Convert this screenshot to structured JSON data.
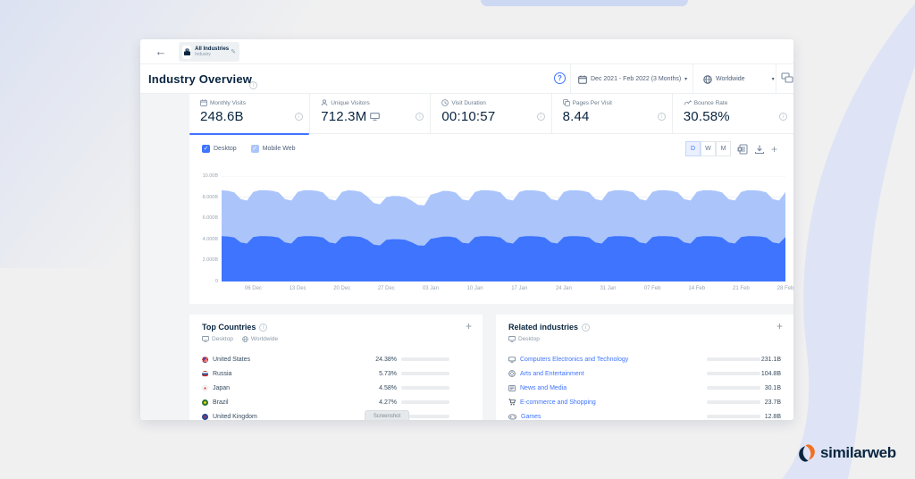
{
  "colors": {
    "accent_blue": "#3e74fe",
    "light_blue": "#abc5fb",
    "navy": "#092540",
    "card_bg": "#ffffff",
    "app_bg": "#f2f4f6",
    "brand_orange": "#f36f21"
  },
  "topbar": {
    "back_arrow": "←",
    "entity_name": "All Industries",
    "entity_type": "Industry",
    "edit_icon": "pencil"
  },
  "header": {
    "title": "Industry Overview",
    "help_label": "?",
    "date_range": "Dec 2021 - Feb 2022 (3 Months)",
    "region": "Worldwide"
  },
  "metrics": [
    {
      "label": "Monthly Visits",
      "value": "248.6B",
      "icon": "calendar",
      "selected": true,
      "device_icon": ""
    },
    {
      "label": "Unique Visitors",
      "value": "712.3M",
      "icon": "users",
      "selected": false,
      "device_icon": "desktop"
    },
    {
      "label": "Visit Duration",
      "value": "00:10:57",
      "icon": "clock",
      "selected": false,
      "device_icon": ""
    },
    {
      "label": "Pages Per Visit",
      "value": "8.44",
      "icon": "pages",
      "selected": false,
      "device_icon": ""
    },
    {
      "label": "Bounce Rate",
      "value": "30.58%",
      "icon": "bounce",
      "selected": false,
      "device_icon": ""
    }
  ],
  "chart_controls": {
    "granularity": [
      "D",
      "W",
      "M"
    ],
    "active_granularity": "D",
    "tools": [
      "excel-export",
      "download",
      "add"
    ]
  },
  "chart_data": {
    "type": "area",
    "stacked": true,
    "legend": [
      {
        "label": "Desktop",
        "color": "#3e74fe",
        "checked": true
      },
      {
        "label": "Mobile Web",
        "color": "#abc5fb",
        "checked": true
      }
    ],
    "ylim": [
      0,
      10
    ],
    "y_unit": "billions of visits",
    "y_ticks": [
      "10.00B",
      "8.000B",
      "6.000B",
      "4.000B",
      "2.000B",
      "0"
    ],
    "y_tick_values": [
      10,
      8,
      6,
      4,
      2,
      0
    ],
    "x_ticks": [
      "06 Dec",
      "13 Dec",
      "20 Dec",
      "27 Dec",
      "03 Jan",
      "10 Jan",
      "17 Jan",
      "24 Jan",
      "31 Jan",
      "07 Feb",
      "14 Feb",
      "21 Feb",
      "28 Feb"
    ],
    "x_tick_day_index": [
      5,
      12,
      19,
      26,
      33,
      40,
      47,
      54,
      61,
      68,
      75,
      82,
      89
    ],
    "series": [
      {
        "name": "Desktop",
        "color": "#3e74fe",
        "values": [
          4.3,
          4.27,
          4.18,
          3.7,
          3.6,
          4.22,
          4.3,
          4.3,
          4.27,
          4.18,
          3.7,
          3.6,
          4.22,
          4.3,
          4.3,
          4.27,
          4.18,
          3.7,
          3.6,
          4.22,
          4.3,
          4.28,
          4.22,
          3.95,
          3.5,
          3.42,
          3.95,
          4.02,
          4.0,
          3.95,
          3.72,
          3.42,
          3.4,
          4.05,
          4.15,
          4.26,
          4.25,
          4.16,
          3.68,
          3.6,
          4.22,
          4.3,
          4.3,
          4.27,
          4.18,
          3.7,
          3.6,
          4.22,
          4.3,
          4.3,
          4.27,
          4.18,
          3.7,
          3.6,
          4.22,
          4.3,
          4.3,
          4.27,
          4.18,
          3.7,
          3.6,
          4.22,
          4.3,
          4.3,
          4.27,
          4.18,
          3.7,
          3.6,
          4.22,
          4.3,
          4.3,
          4.27,
          4.18,
          3.7,
          3.6,
          4.22,
          4.3,
          4.3,
          4.27,
          4.18,
          3.7,
          3.6,
          4.22,
          4.3,
          4.3,
          4.27,
          4.18,
          3.7,
          3.6,
          4.22
        ]
      },
      {
        "name": "Mobile Web",
        "color": "#abc5fb",
        "values": [
          4.35,
          4.33,
          4.27,
          4.12,
          4.08,
          4.28,
          4.35,
          4.35,
          4.33,
          4.27,
          4.12,
          4.08,
          4.28,
          4.35,
          4.35,
          4.33,
          4.27,
          4.12,
          4.08,
          4.28,
          4.35,
          4.33,
          4.28,
          4.1,
          3.95,
          3.9,
          4.05,
          4.1,
          4.1,
          4.05,
          3.95,
          3.85,
          3.82,
          4.18,
          4.25,
          4.34,
          4.32,
          4.26,
          4.1,
          4.08,
          4.28,
          4.35,
          4.35,
          4.33,
          4.27,
          4.12,
          4.08,
          4.28,
          4.35,
          4.35,
          4.33,
          4.27,
          4.12,
          4.08,
          4.28,
          4.35,
          4.35,
          4.33,
          4.27,
          4.12,
          4.08,
          4.28,
          4.35,
          4.35,
          4.33,
          4.27,
          4.12,
          4.08,
          4.28,
          4.35,
          4.35,
          4.33,
          4.27,
          4.12,
          4.08,
          4.28,
          4.35,
          4.35,
          4.33,
          4.27,
          4.12,
          4.08,
          4.28,
          4.35,
          4.35,
          4.33,
          4.27,
          4.12,
          4.08,
          4.28
        ]
      }
    ]
  },
  "top_countries": {
    "title": "Top Countries",
    "filters": [
      "Desktop",
      "Worldwide"
    ],
    "add_label": "+",
    "share_scale_max": 68,
    "rows": [
      {
        "name": "United States",
        "flag": "us",
        "share": "24.38%",
        "num": 24.38
      },
      {
        "name": "Russia",
        "flag": "ru",
        "share": "5.73%",
        "num": 5.73
      },
      {
        "name": "Japan",
        "flag": "jp",
        "share": "4.58%",
        "num": 4.58
      },
      {
        "name": "Brazil",
        "flag": "br",
        "share": "4.27%",
        "num": 4.27
      },
      {
        "name": "United Kingdom",
        "flag": "uk",
        "share": "",
        "num": 4.0
      }
    ],
    "overlay_pill": "Screenshot"
  },
  "related_industries": {
    "title": "Related industries",
    "filters": [
      "Desktop"
    ],
    "add_label": "+",
    "value_scale_max": 490,
    "rows": [
      {
        "name": "Computers Electronics and Technology",
        "icon": "monitor",
        "value": "231.1B",
        "num": 231.1
      },
      {
        "name": "Arts and Entertainment",
        "icon": "film",
        "value": "104.8B",
        "num": 104.8
      },
      {
        "name": "News and Media",
        "icon": "news",
        "value": "30.1B",
        "num": 30.1
      },
      {
        "name": "E-commerce and Shopping",
        "icon": "cart",
        "value": "23.7B",
        "num": 23.7
      },
      {
        "name": "Games",
        "icon": "game",
        "value": "12.8B",
        "num": 12.8
      }
    ]
  },
  "branding": {
    "logo_text": "similarweb"
  }
}
